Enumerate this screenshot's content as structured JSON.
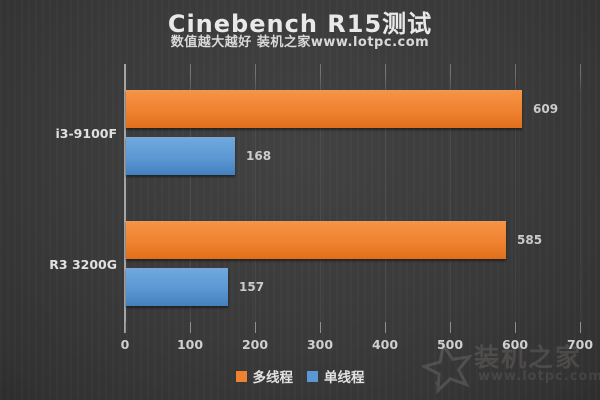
{
  "header": {
    "title": "Cinebench R15测试",
    "subtitle": "数值越大越好 装机之家www.lotpc.com"
  },
  "chart_data": {
    "type": "bar",
    "orientation": "horizontal",
    "title": "Cinebench R15测试",
    "subtitle": "数值越大越好 装机之家www.lotpc.com",
    "categories": [
      "i3-9100F",
      "R3 3200G"
    ],
    "series": [
      {
        "name": "多线程",
        "color": "#ef8230",
        "values": [
          609,
          585
        ]
      },
      {
        "name": "单线程",
        "color": "#5b97d3",
        "values": [
          168,
          157
        ]
      }
    ],
    "xlim": [
      0,
      700
    ],
    "xticks": [
      0,
      100,
      200,
      300,
      400,
      500,
      600,
      700
    ],
    "grid": "vertical",
    "legend_position": "bottom",
    "value_labels_shown": true
  },
  "legend": {
    "items": [
      {
        "label": "多线程",
        "color": "#ef8230"
      },
      {
        "label": "单线程",
        "color": "#5b97d3"
      }
    ]
  },
  "watermark": {
    "brand": "装机之家",
    "url": "www.lotpc.com"
  },
  "colors": {
    "background": "#3a3a3a",
    "axis": "#a5a5a5",
    "text": "#e0e0e0",
    "multi_thread": "#ef8230",
    "single_thread": "#5b97d3"
  }
}
